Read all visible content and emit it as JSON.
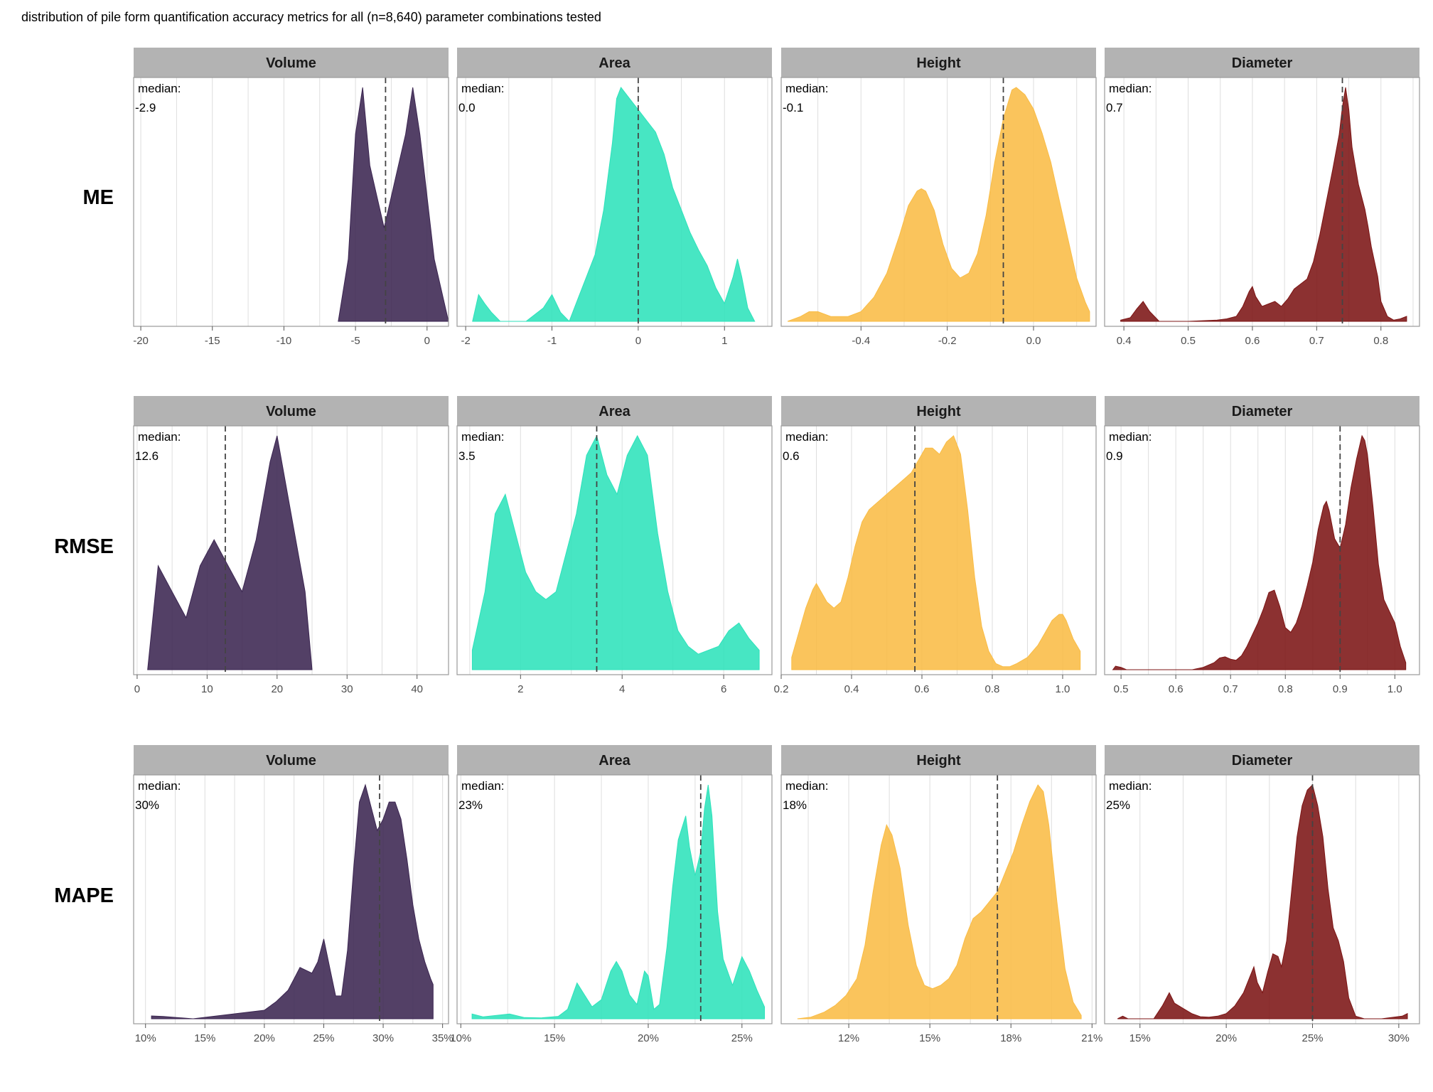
{
  "figure": {
    "title": "distribution of pile form quantification accuracy metrics for all (n=8,640) parameter combinations tested",
    "median_label": "median:"
  },
  "colors": {
    "Volume": "#3b2551",
    "Area": "#2de2bb",
    "Height": "#f9bc45",
    "Diameter": "#7c1414",
    "strip": "#b3b3b3",
    "grid": "#dedede",
    "panel_border": "#9a9a9a",
    "median_line": "#444444"
  },
  "chart_data": [
    {
      "type": "area",
      "row": "ME",
      "metric": "Volume",
      "median_text": "-2.9",
      "median": -2.9,
      "xlim": [
        -20.5,
        1.5
      ],
      "xticks": [
        -20,
        -15,
        -10,
        -5,
        0
      ],
      "xtick_labels": [
        "-20",
        "-15",
        "-10",
        "-5",
        "0"
      ],
      "x": [
        -6.2,
        -5.5,
        -5,
        -4.5,
        -4,
        -3.5,
        -3,
        -2.5,
        -2,
        -1.5,
        -1,
        -0.5,
        0,
        0.5,
        1.5
      ],
      "y": [
        0,
        0.004,
        0.012,
        0.015,
        0.01,
        0.008,
        0.006,
        0.008,
        0.01,
        0.012,
        0.015,
        0.012,
        0.008,
        0.004,
        0
      ]
    },
    {
      "type": "area",
      "row": "ME",
      "metric": "Area",
      "median_text": "0.0",
      "median": 0.0,
      "xlim": [
        -2.1,
        1.55
      ],
      "xticks": [
        -2,
        -1,
        0,
        1
      ],
      "xtick_labels": [
        "-2",
        "-1",
        "0",
        "1"
      ],
      "x": [
        -1.92,
        -1.85,
        -1.78,
        -1.7,
        -1.6,
        -1.3,
        -1.1,
        -1.0,
        -0.9,
        -0.8,
        -0.7,
        -0.6,
        -0.5,
        -0.4,
        -0.3,
        -0.25,
        -0.2,
        -0.1,
        0,
        0.1,
        0.2,
        0.3,
        0.4,
        0.5,
        0.6,
        0.7,
        0.8,
        0.9,
        1.0,
        1.1,
        1.15,
        1.2,
        1.27,
        1.35
      ],
      "y": [
        0,
        0.012,
        0.008,
        0.004,
        0,
        0,
        0.006,
        0.012,
        0.004,
        0,
        0.01,
        0.02,
        0.03,
        0.05,
        0.08,
        0.1,
        0.105,
        0.1,
        0.095,
        0.09,
        0.085,
        0.075,
        0.06,
        0.05,
        0.04,
        0.032,
        0.025,
        0.015,
        0.008,
        0.02,
        0.028,
        0.02,
        0.006,
        0
      ]
    },
    {
      "type": "area",
      "row": "ME",
      "metric": "Height",
      "median_text": "-0.1",
      "median": -0.07,
      "xlim": [
        -0.585,
        0.145
      ],
      "xticks": [
        -0.4,
        -0.2,
        0.0
      ],
      "xtick_labels": [
        "-0.4",
        "-0.2",
        "0.0"
      ],
      "x": [
        -0.57,
        -0.54,
        -0.52,
        -0.5,
        -0.47,
        -0.43,
        -0.4,
        -0.37,
        -0.34,
        -0.31,
        -0.29,
        -0.27,
        -0.26,
        -0.25,
        -0.23,
        -0.21,
        -0.19,
        -0.17,
        -0.15,
        -0.13,
        -0.11,
        -0.09,
        -0.07,
        -0.05,
        -0.04,
        -0.02,
        0,
        0.02,
        0.04,
        0.06,
        0.08,
        0.1,
        0.12,
        0.13
      ],
      "y": [
        0,
        0.01,
        0.02,
        0.02,
        0.01,
        0.01,
        0.02,
        0.05,
        0.1,
        0.18,
        0.24,
        0.27,
        0.275,
        0.27,
        0.23,
        0.16,
        0.11,
        0.09,
        0.1,
        0.14,
        0.22,
        0.33,
        0.42,
        0.48,
        0.485,
        0.47,
        0.44,
        0.39,
        0.33,
        0.25,
        0.17,
        0.09,
        0.04,
        0.02
      ]
    },
    {
      "type": "area",
      "row": "ME",
      "metric": "Diameter",
      "median_text": "0.7",
      "median": 0.74,
      "xlim": [
        0.37,
        0.86
      ],
      "xticks": [
        0.4,
        0.5,
        0.6,
        0.7,
        0.8
      ],
      "xtick_labels": [
        "0.4",
        "0.5",
        "0.6",
        "0.7",
        "0.8"
      ],
      "x": [
        0.395,
        0.41,
        0.42,
        0.43,
        0.44,
        0.455,
        0.5,
        0.545,
        0.56,
        0.575,
        0.585,
        0.595,
        0.6,
        0.605,
        0.615,
        0.625,
        0.635,
        0.645,
        0.655,
        0.665,
        0.675,
        0.685,
        0.695,
        0.705,
        0.715,
        0.725,
        0.735,
        0.74,
        0.745,
        0.75,
        0.755,
        0.765,
        0.775,
        0.78,
        0.785,
        0.795,
        0.8,
        0.81,
        0.82,
        0.83,
        0.84
      ],
      "y": [
        0.005,
        0.015,
        0.05,
        0.08,
        0.04,
        0,
        0,
        0.005,
        0.01,
        0.02,
        0.06,
        0.12,
        0.14,
        0.1,
        0.06,
        0.07,
        0.08,
        0.06,
        0.09,
        0.13,
        0.15,
        0.17,
        0.24,
        0.35,
        0.48,
        0.61,
        0.75,
        0.86,
        0.94,
        0.85,
        0.7,
        0.55,
        0.45,
        0.38,
        0.3,
        0.18,
        0.08,
        0.02,
        0.005,
        0.01,
        0.02
      ]
    },
    {
      "type": "area",
      "row": "RMSE",
      "metric": "Volume",
      "median_text": "12.6",
      "median": 12.6,
      "xlim": [
        -0.5,
        44.5
      ],
      "xticks": [
        0,
        10,
        20,
        30,
        40
      ],
      "xtick_labels": [
        "0",
        "10",
        "20",
        "30",
        "40"
      ],
      "x": [
        1.5,
        3,
        5,
        7,
        9,
        11,
        13,
        15,
        17,
        19,
        20,
        22,
        24,
        25
      ],
      "y": [
        0,
        0.004,
        0.003,
        0.002,
        0.004,
        0.005,
        0.004,
        0.003,
        0.005,
        0.008,
        0.009,
        0.006,
        0.003,
        0
      ]
    },
    {
      "type": "area",
      "row": "RMSE",
      "metric": "Area",
      "median_text": "3.5",
      "median": 3.5,
      "xlim": [
        0.75,
        6.95
      ],
      "xticks": [
        2,
        4,
        6
      ],
      "xtick_labels": [
        "2",
        "4",
        "6"
      ],
      "x": [
        1.05,
        1.3,
        1.5,
        1.7,
        1.9,
        2.1,
        2.3,
        2.5,
        2.7,
        2.9,
        3.1,
        3.3,
        3.5,
        3.7,
        3.9,
        4.1,
        4.3,
        4.5,
        4.7,
        4.9,
        5.1,
        5.3,
        5.5,
        5.7,
        5.9,
        6.1,
        6.3,
        6.5,
        6.7
      ],
      "y": [
        0.005,
        0.02,
        0.04,
        0.045,
        0.035,
        0.025,
        0.02,
        0.018,
        0.02,
        0.03,
        0.04,
        0.055,
        0.06,
        0.05,
        0.045,
        0.055,
        0.06,
        0.055,
        0.035,
        0.02,
        0.01,
        0.006,
        0.004,
        0.005,
        0.006,
        0.01,
        0.012,
        0.008,
        0.005
      ]
    },
    {
      "type": "area",
      "row": "RMSE",
      "metric": "Height",
      "median_text": "0.6",
      "median": 0.58,
      "xlim": [
        0.2,
        1.095
      ],
      "xticks": [
        0.2,
        0.4,
        0.6,
        0.8,
        1.0
      ],
      "xtick_labels": [
        "0.2",
        "0.4",
        "0.6",
        "0.8",
        "1.0"
      ],
      "x": [
        0.23,
        0.25,
        0.27,
        0.29,
        0.3,
        0.31,
        0.33,
        0.35,
        0.37,
        0.39,
        0.41,
        0.43,
        0.45,
        0.47,
        0.49,
        0.51,
        0.53,
        0.55,
        0.57,
        0.59,
        0.61,
        0.63,
        0.65,
        0.67,
        0.69,
        0.71,
        0.73,
        0.75,
        0.77,
        0.79,
        0.81,
        0.83,
        0.85,
        0.87,
        0.9,
        0.93,
        0.95,
        0.97,
        0.99,
        1.0,
        1.01,
        1.03,
        1.05
      ],
      "y": [
        0.02,
        0.06,
        0.1,
        0.13,
        0.14,
        0.13,
        0.11,
        0.1,
        0.11,
        0.15,
        0.2,
        0.24,
        0.26,
        0.27,
        0.28,
        0.29,
        0.3,
        0.31,
        0.32,
        0.34,
        0.36,
        0.36,
        0.35,
        0.37,
        0.38,
        0.35,
        0.26,
        0.15,
        0.07,
        0.03,
        0.01,
        0.005,
        0.005,
        0.01,
        0.02,
        0.04,
        0.06,
        0.08,
        0.09,
        0.09,
        0.08,
        0.05,
        0.03
      ]
    },
    {
      "type": "area",
      "row": "RMSE",
      "metric": "Diameter",
      "median_text": "0.9",
      "median": 0.9,
      "xlim": [
        0.47,
        1.045
      ],
      "xticks": [
        0.5,
        0.6,
        0.7,
        0.8,
        0.9,
        1.0
      ],
      "xtick_labels": [
        "0.5",
        "0.6",
        "0.7",
        "0.8",
        "0.9",
        "1.0"
      ],
      "x": [
        0.485,
        0.49,
        0.5,
        0.51,
        0.63,
        0.65,
        0.67,
        0.68,
        0.69,
        0.7,
        0.71,
        0.72,
        0.73,
        0.74,
        0.75,
        0.76,
        0.77,
        0.78,
        0.79,
        0.8,
        0.81,
        0.82,
        0.83,
        0.84,
        0.85,
        0.86,
        0.87,
        0.875,
        0.88,
        0.89,
        0.9,
        0.91,
        0.92,
        0.93,
        0.94,
        0.945,
        0.95,
        0.96,
        0.97,
        0.98,
        0.99,
        1.0,
        1.01,
        1.02
      ],
      "y": [
        0,
        0.015,
        0.01,
        0,
        0,
        0.01,
        0.03,
        0.05,
        0.055,
        0.045,
        0.04,
        0.06,
        0.1,
        0.15,
        0.2,
        0.26,
        0.33,
        0.34,
        0.27,
        0.18,
        0.16,
        0.2,
        0.27,
        0.36,
        0.46,
        0.6,
        0.7,
        0.72,
        0.68,
        0.56,
        0.52,
        0.62,
        0.78,
        0.9,
        1.0,
        0.98,
        0.92,
        0.7,
        0.45,
        0.3,
        0.25,
        0.2,
        0.1,
        0.03
      ]
    },
    {
      "type": "area",
      "row": "MAPE",
      "metric": "Volume",
      "median_text": "30%",
      "median": 29.7,
      "xlim": [
        9.0,
        35.5
      ],
      "xticks": [
        10,
        15,
        20,
        25,
        30,
        35
      ],
      "xtick_labels": [
        "10%",
        "15%",
        "20%",
        "25%",
        "30%",
        "35%"
      ],
      "x": [
        10.5,
        11.5,
        14,
        16,
        18,
        20,
        21,
        22,
        22.5,
        23,
        23.5,
        24,
        24.5,
        25,
        25.5,
        26,
        26.5,
        27,
        27.5,
        28,
        28.5,
        29,
        29.5,
        30,
        30.5,
        31,
        31.5,
        32,
        32.5,
        33,
        33.5,
        34,
        34.2
      ],
      "y": [
        0.005,
        0.004,
        0,
        0.005,
        0.01,
        0.015,
        0.03,
        0.05,
        0.07,
        0.09,
        0.085,
        0.08,
        0.1,
        0.14,
        0.09,
        0.04,
        0.04,
        0.12,
        0.26,
        0.38,
        0.41,
        0.37,
        0.33,
        0.35,
        0.38,
        0.38,
        0.35,
        0.28,
        0.2,
        0.14,
        0.1,
        0.07,
        0.06
      ]
    },
    {
      "type": "area",
      "row": "MAPE",
      "metric": "Area",
      "median_text": "23%",
      "median": 22.8,
      "xlim": [
        9.8,
        26.6
      ],
      "xticks": [
        10,
        15,
        20,
        25
      ],
      "xtick_labels": [
        "10%",
        "15%",
        "20%",
        "25%"
      ],
      "x": [
        10.6,
        11.2,
        12.6,
        13.4,
        14.3,
        15.2,
        15.7,
        16.2,
        16.6,
        17,
        17.5,
        18,
        18.3,
        18.6,
        19,
        19.4,
        19.8,
        20,
        20.3,
        20.6,
        21,
        21.3,
        21.6,
        22,
        22.2,
        22.5,
        22.8,
        23,
        23.2,
        23.4,
        23.7,
        24,
        24.5,
        25,
        25.4,
        25.8,
        26.2
      ],
      "y": [
        0.02,
        0.008,
        0.02,
        0.005,
        0.004,
        0.01,
        0.04,
        0.15,
        0.1,
        0.05,
        0.08,
        0.2,
        0.24,
        0.2,
        0.1,
        0.06,
        0.2,
        0.18,
        0.04,
        0.06,
        0.3,
        0.55,
        0.75,
        0.85,
        0.72,
        0.6,
        0.7,
        0.88,
        0.98,
        0.85,
        0.45,
        0.25,
        0.14,
        0.26,
        0.2,
        0.12,
        0.05
      ]
    },
    {
      "type": "area",
      "row": "MAPE",
      "metric": "Height",
      "median_text": "18%",
      "median": 17.5,
      "xlim": [
        9.5,
        21.15
      ],
      "xticks": [
        12,
        15,
        18,
        21
      ],
      "xtick_labels": [
        "12%",
        "15%",
        "18%",
        "21%"
      ],
      "x": [
        10.1,
        10.6,
        11.1,
        11.5,
        11.9,
        12.3,
        12.6,
        12.9,
        13.2,
        13.4,
        13.6,
        13.9,
        14.2,
        14.5,
        14.8,
        15.1,
        15.4,
        15.7,
        16,
        16.3,
        16.6,
        16.9,
        17.2,
        17.5,
        17.8,
        18.1,
        18.4,
        18.7,
        19,
        19.2,
        19.4,
        19.7,
        20,
        20.3,
        20.6
      ],
      "y": [
        0,
        0.005,
        0.02,
        0.04,
        0.07,
        0.12,
        0.22,
        0.38,
        0.52,
        0.58,
        0.55,
        0.45,
        0.28,
        0.16,
        0.1,
        0.09,
        0.1,
        0.12,
        0.16,
        0.24,
        0.3,
        0.32,
        0.35,
        0.38,
        0.44,
        0.5,
        0.58,
        0.65,
        0.7,
        0.68,
        0.58,
        0.35,
        0.15,
        0.05,
        0.01
      ]
    },
    {
      "type": "area",
      "row": "MAPE",
      "metric": "Diameter",
      "median_text": "25%",
      "median": 25.0,
      "xlim": [
        12.95,
        31.2
      ],
      "xticks": [
        15,
        20,
        25,
        30
      ],
      "xtick_labels": [
        "15%",
        "20%",
        "25%",
        "30%"
      ],
      "x": [
        13.7,
        14.0,
        14.3,
        15.8,
        16.3,
        16.7,
        17.0,
        17.5,
        18,
        18.5,
        19,
        19.5,
        20,
        20.5,
        21,
        21.3,
        21.6,
        21.8,
        22.1,
        22.4,
        22.7,
        23,
        23.2,
        23.5,
        23.8,
        24.1,
        24.4,
        24.7,
        25,
        25.3,
        25.6,
        25.9,
        26.2,
        26.5,
        26.8,
        27.1,
        27.5,
        28,
        29,
        30.2,
        30.5
      ],
      "y": [
        0,
        0.01,
        0,
        0,
        0.05,
        0.1,
        0.06,
        0.04,
        0.02,
        0.008,
        0.006,
        0.01,
        0.02,
        0.05,
        0.1,
        0.15,
        0.2,
        0.14,
        0.1,
        0.18,
        0.25,
        0.24,
        0.2,
        0.3,
        0.5,
        0.7,
        0.82,
        0.88,
        0.9,
        0.82,
        0.7,
        0.5,
        0.35,
        0.3,
        0.22,
        0.08,
        0.01,
        0,
        0,
        0.01,
        0.02
      ]
    }
  ]
}
